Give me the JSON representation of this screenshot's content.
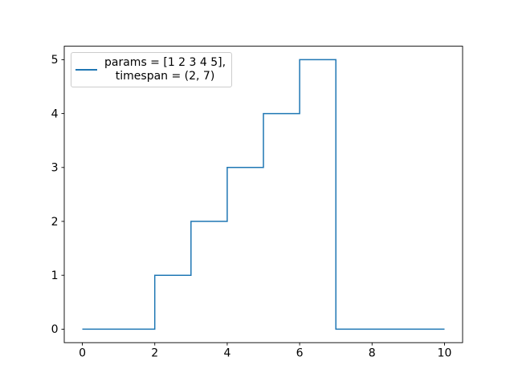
{
  "figure": {
    "background_color": "#ffffff",
    "axes_background_color": "#ffffff",
    "spine_color": "#000000",
    "tick_color": "#000000"
  },
  "legend": {
    "lines": [
      "params = [1 2 3 4 5],",
      "timespan = (2, 7)"
    ],
    "handle_color": "#1f77b4",
    "border_color": "#cccccc",
    "position": "upper left"
  },
  "chart_data": {
    "type": "line",
    "style": "step",
    "title": "",
    "xlabel": "",
    "ylabel": "",
    "xlim": [
      -0.5,
      10.5
    ],
    "ylim": [
      -0.25,
      5.25
    ],
    "x_ticks": [
      0,
      2,
      4,
      6,
      8,
      10
    ],
    "y_ticks": [
      0,
      1,
      2,
      3,
      4,
      5
    ],
    "grid": false,
    "legend_position": "upper left",
    "series": [
      {
        "name": "params = [1 2 3 4 5],\ntimespan = (2, 7)",
        "color": "#1f77b4",
        "line_width": 1.5,
        "points": [
          [
            0,
            0
          ],
          [
            2,
            0
          ],
          [
            2,
            1
          ],
          [
            3,
            1
          ],
          [
            3,
            2
          ],
          [
            4,
            2
          ],
          [
            4,
            3
          ],
          [
            5,
            3
          ],
          [
            5,
            4
          ],
          [
            6,
            4
          ],
          [
            6,
            5
          ],
          [
            7,
            5
          ],
          [
            7,
            0
          ],
          [
            10,
            0
          ]
        ]
      }
    ]
  }
}
